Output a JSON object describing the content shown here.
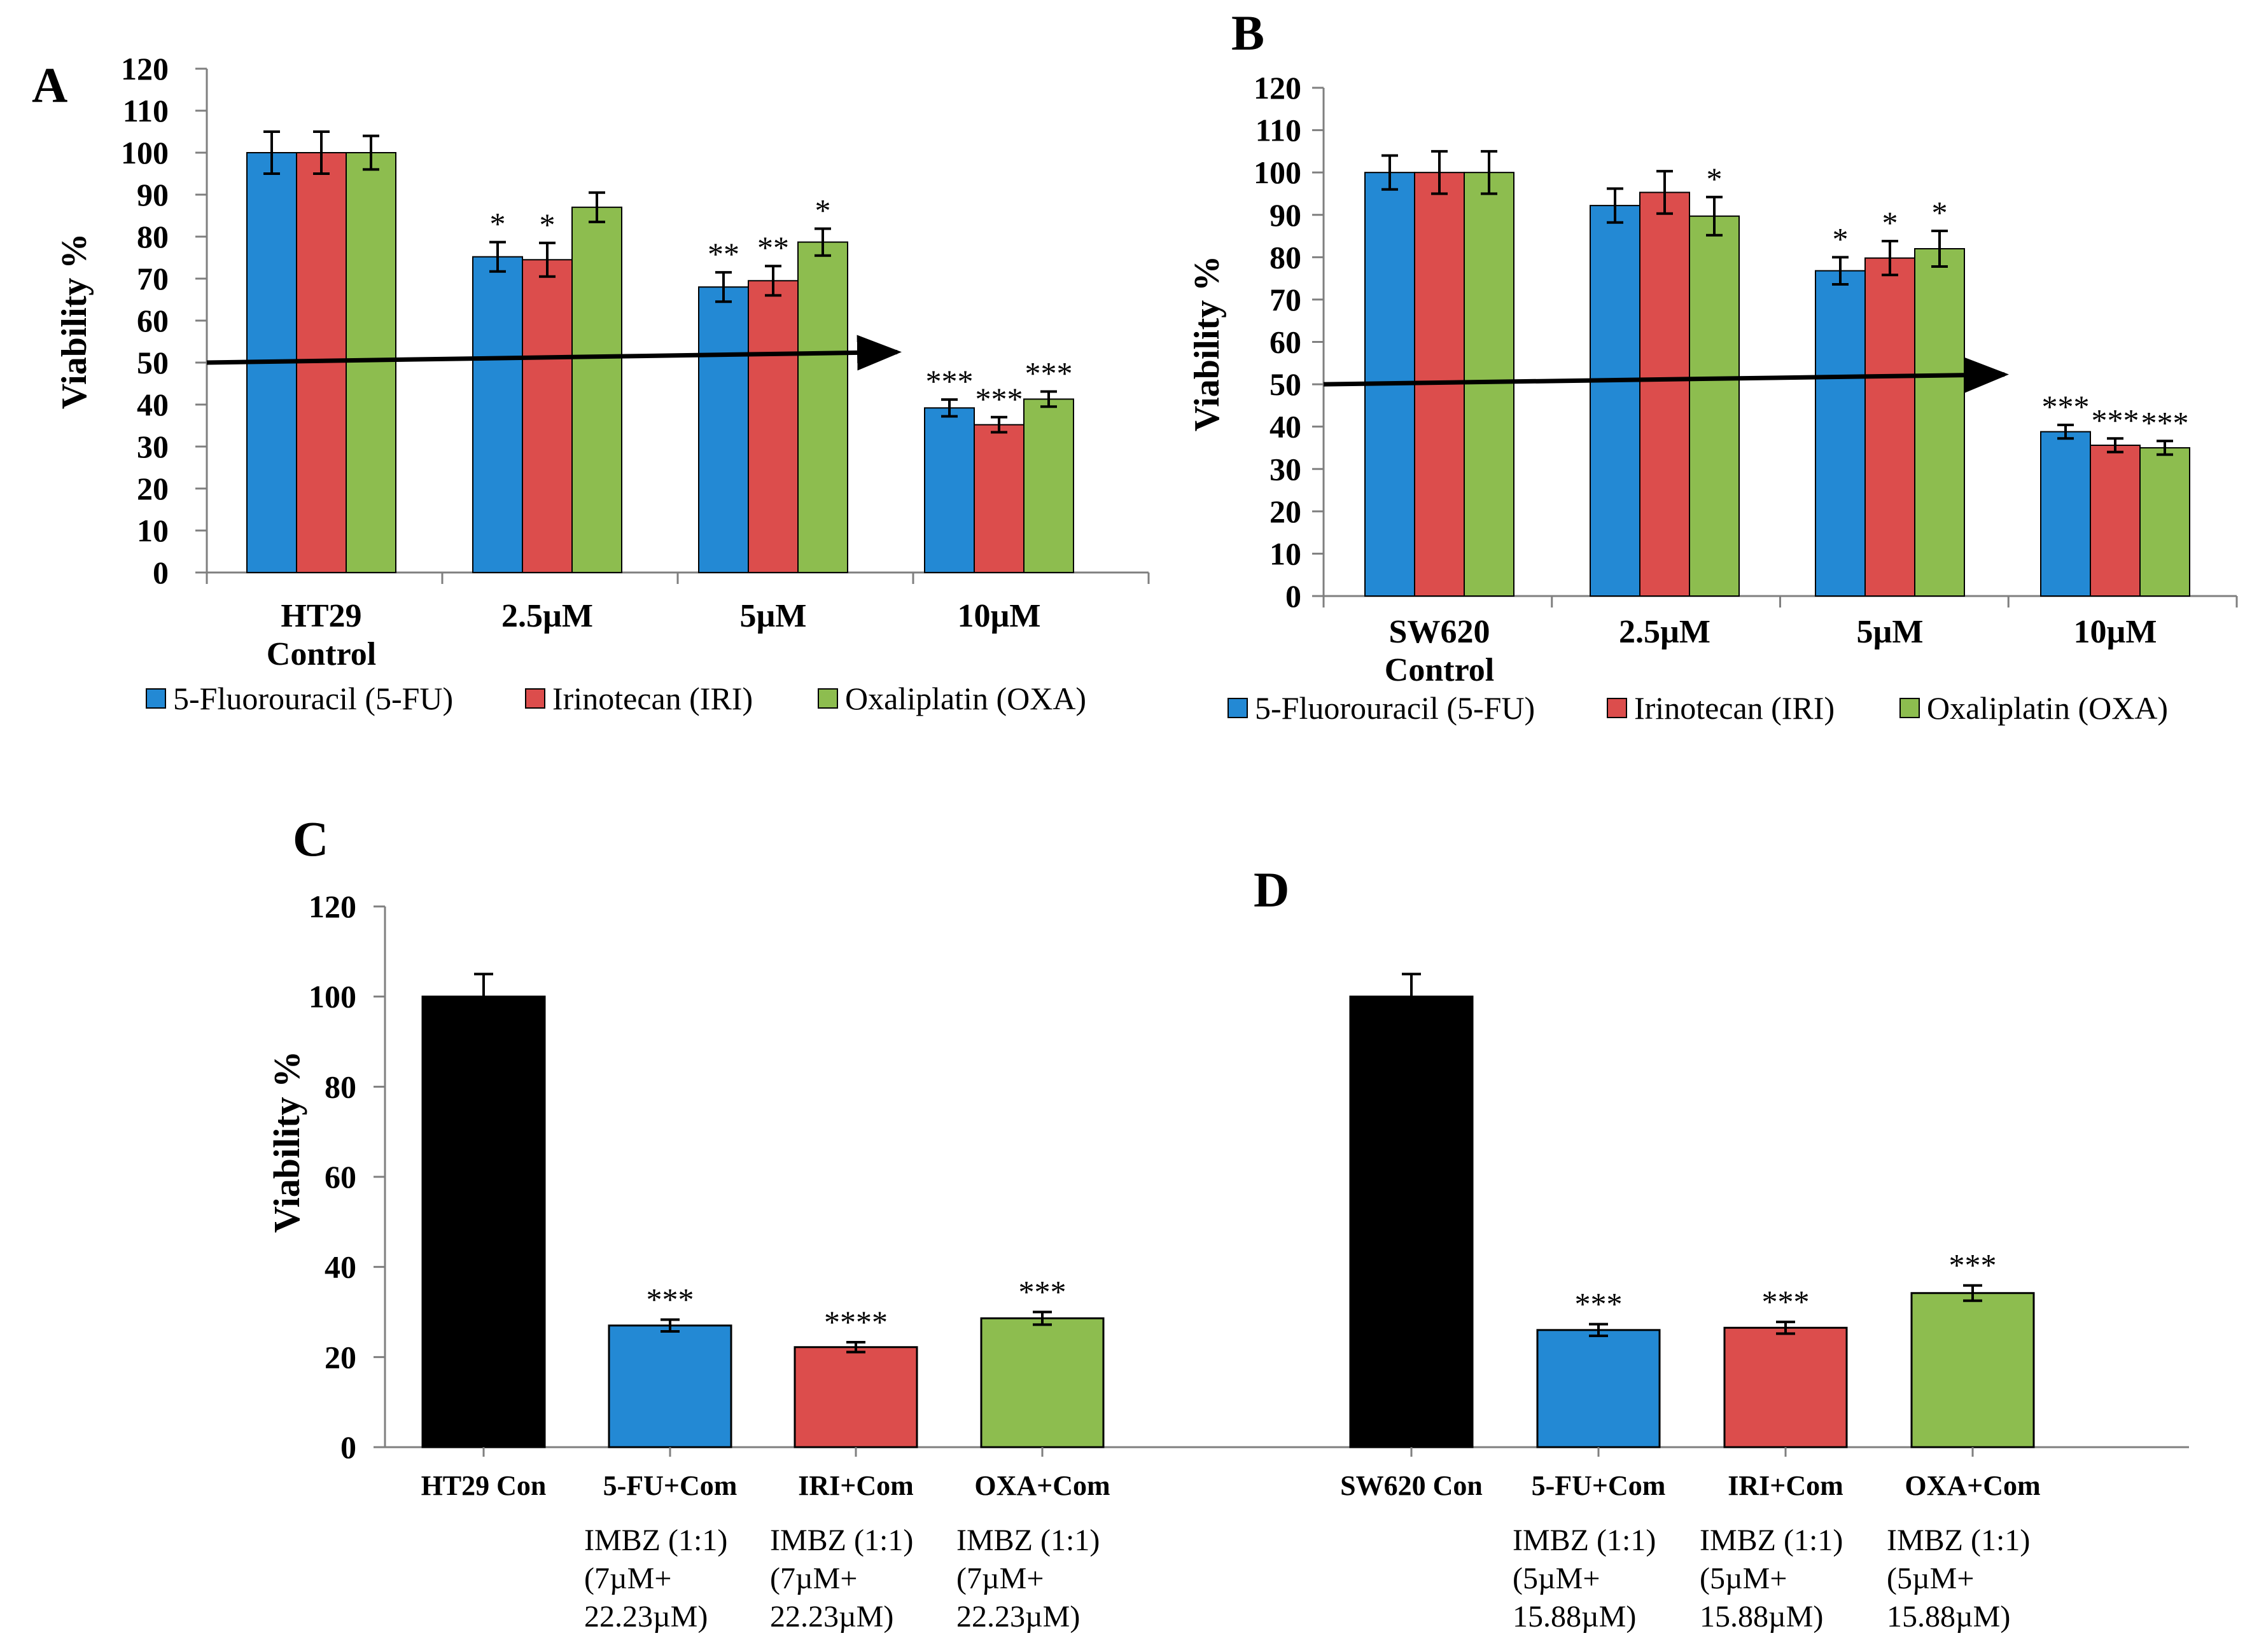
{
  "colors": {
    "fu": "#2389D4",
    "iri": "#DC4D4C",
    "oxa": "#8DBD4F",
    "control": "#000000",
    "axis": "#7F7F7F",
    "bar_outline": "#000000",
    "arrow": "#000000"
  },
  "chart_data": [
    {
      "id": "A",
      "panel_label": "A",
      "type": "bar",
      "ylabel": "Viability %",
      "ylim": [
        0,
        120
      ],
      "ytick_step": 10,
      "categories": [
        [
          "HT29",
          "Control"
        ],
        [
          "2.5µM"
        ],
        [
          "5µM"
        ],
        [
          "10µM"
        ]
      ],
      "series": [
        {
          "name": "5-Fluorouracil (5-FU)",
          "color_key": "fu",
          "values": [
            100,
            75.2,
            68,
            39.2
          ],
          "errors": [
            5,
            3.5,
            3.5,
            2
          ],
          "sig": [
            "",
            "*",
            "**",
            "***"
          ]
        },
        {
          "name": "Irinotecan (IRI)",
          "color_key": "iri",
          "values": [
            100,
            74.5,
            69.5,
            35.2
          ],
          "errors": [
            5,
            4,
            3.5,
            1.8
          ],
          "sig": [
            "",
            "*",
            "**",
            "***"
          ]
        },
        {
          "name": "Oxaliplatin (OXA)",
          "color_key": "oxa",
          "values": [
            100,
            87,
            78.7,
            41.3
          ],
          "errors": [
            4,
            3.5,
            3.2,
            1.8
          ],
          "sig": [
            "",
            "",
            "*",
            "***"
          ]
        }
      ],
      "trend_arrow": {
        "from_value": 50,
        "to_value": 52.5,
        "start": "left axis",
        "end": "right of 5µM group"
      },
      "legend": [
        "5-Fluorouracil (5-FU)",
        "Irinotecan (IRI)",
        "Oxaliplatin (OXA)"
      ]
    },
    {
      "id": "B",
      "panel_label": "B",
      "type": "bar",
      "ylabel": "Viability %",
      "ylim": [
        0,
        120
      ],
      "ytick_step": 10,
      "categories": [
        [
          "SW620",
          "Control"
        ],
        [
          "2.5µM"
        ],
        [
          "5µM"
        ],
        [
          "10µM"
        ]
      ],
      "series": [
        {
          "name": "5-Fluorouracil (5-FU)",
          "color_key": "fu",
          "values": [
            100,
            92.2,
            76.8,
            38.8
          ],
          "errors": [
            4,
            4,
            3.2,
            1.6
          ],
          "sig": [
            "",
            "",
            "*",
            "***"
          ]
        },
        {
          "name": "Irinotecan (IRI)",
          "color_key": "iri",
          "values": [
            100,
            95.3,
            79.8,
            35.6
          ],
          "errors": [
            5,
            5,
            4,
            1.6
          ],
          "sig": [
            "",
            "",
            "*",
            "***"
          ]
        },
        {
          "name": "Oxaliplatin (OXA)",
          "color_key": "oxa",
          "values": [
            100,
            89.7,
            82,
            35
          ],
          "errors": [
            5,
            4.5,
            4.2,
            1.6
          ],
          "sig": [
            "",
            "*",
            "*",
            "***"
          ]
        }
      ],
      "trend_arrow": {
        "from_value": 50,
        "to_value": 52.3,
        "start": "left axis",
        "end": "right of 5µM group"
      },
      "legend": [
        "5-Fluorouracil (5-FU)",
        "Irinotecan (IRI)",
        "Oxaliplatin (OXA)"
      ]
    },
    {
      "id": "CD",
      "panel_labels": [
        "C",
        "D"
      ],
      "type": "bar",
      "ylabel": "Viability %",
      "ylim": [
        0,
        120
      ],
      "ytick_step": 20,
      "bars": [
        {
          "label": "HT29 Con",
          "value": 100,
          "error": 5,
          "sig": "",
          "color_key": "control",
          "sublabel": []
        },
        {
          "label": "5-FU+Com",
          "value": 27,
          "error": 1.3,
          "sig": "***",
          "color_key": "fu",
          "sublabel": [
            "IMBZ (1:1)",
            "(7µM+",
            "22.23µM)"
          ]
        },
        {
          "label": "IRI+Com",
          "value": 22.2,
          "error": 1.1,
          "sig": "****",
          "color_key": "iri",
          "sublabel": [
            "IMBZ (1:1)",
            "(7µM+",
            "22.23µM)"
          ]
        },
        {
          "label": "OXA+Com",
          "value": 28.6,
          "error": 1.4,
          "sig": "***",
          "color_key": "oxa",
          "sublabel": [
            "IMBZ (1:1)",
            "(7µM+",
            "22.23µM)"
          ]
        },
        {
          "label": "SW620 Con",
          "value": 100,
          "error": 5,
          "sig": "",
          "color_key": "control",
          "sublabel": []
        },
        {
          "label": "5-FU+Com",
          "value": 26,
          "error": 1.3,
          "sig": "***",
          "color_key": "fu",
          "sublabel": [
            "IMBZ (1:1)",
            "(5µM+",
            "15.88µM)"
          ]
        },
        {
          "label": "IRI+Com",
          "value": 26.5,
          "error": 1.3,
          "sig": "***",
          "color_key": "iri",
          "sublabel": [
            "IMBZ (1:1)",
            "(5µM+",
            "15.88µM)"
          ]
        },
        {
          "label": "OXA+Com",
          "value": 34.2,
          "error": 1.7,
          "sig": "***",
          "color_key": "oxa",
          "sublabel": [
            "IMBZ (1:1)",
            "(5µM+",
            "15.88µM)"
          ]
        }
      ]
    }
  ]
}
